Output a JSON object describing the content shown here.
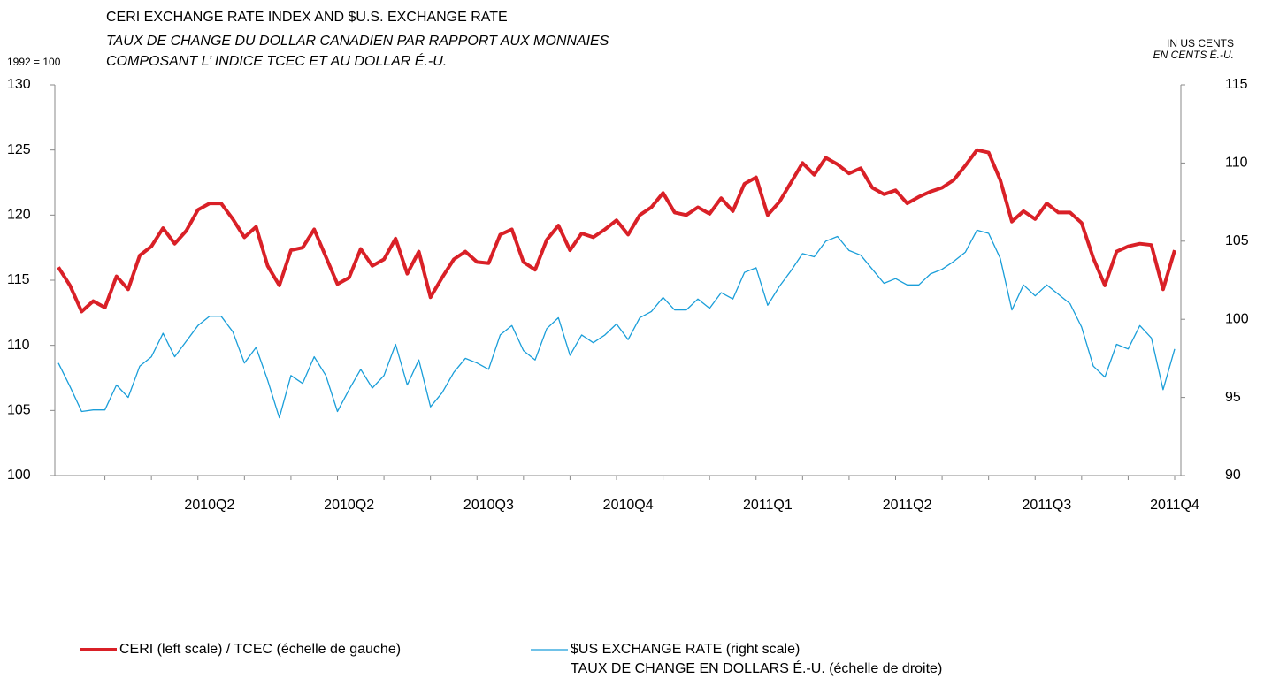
{
  "chart_data": {
    "type": "line",
    "title": "CERI EXCHANGE RATE INDEX AND $U.S. EXCHANGE RATE",
    "subtitle_lines": [
      "TAUX DE CHANGE DU DOLLAR CANADIEN PAR RAPPORT AUX MONNAIES",
      "COMPOSANT L’ INDICE TCEC ET AU DOLLAR É.-U."
    ],
    "y_label": "1992 = 100",
    "y2_label_lines": [
      "IN US CENTS",
      "EN CENTS É.-U."
    ],
    "categories": [
      null,
      null,
      null,
      null,
      null,
      null,
      null,
      null,
      null,
      null,
      null,
      null,
      null,
      "2010Q2",
      null,
      null,
      null,
      null,
      null,
      null,
      null,
      null,
      null,
      null,
      null,
      "2010Q2",
      null,
      null,
      null,
      null,
      null,
      null,
      null,
      null,
      null,
      null,
      null,
      "2010Q3",
      null,
      null,
      null,
      null,
      null,
      null,
      null,
      null,
      null,
      null,
      null,
      "2010Q4",
      null,
      null,
      null,
      null,
      null,
      null,
      null,
      null,
      null,
      null,
      null,
      "2011Q1",
      null,
      null,
      null,
      null,
      null,
      null,
      null,
      null,
      null,
      null,
      null,
      "2011Q2",
      null,
      null,
      null,
      null,
      null,
      null,
      null,
      null,
      null,
      null,
      null,
      "2011Q3",
      null,
      null,
      null,
      null,
      null,
      null,
      null,
      null,
      null,
      null,
      "2011Q4"
    ],
    "ylim": [
      100,
      130
    ],
    "yticks": [
      100,
      105,
      110,
      115,
      120,
      125,
      130
    ],
    "y2lim": [
      90,
      115
    ],
    "y2ticks": [
      90,
      95,
      100,
      105,
      110,
      115
    ],
    "series": [
      {
        "name": "CERI (left scale) / TCEC (échelle de gauche)",
        "color": "#d92027",
        "width": 4,
        "values": [
          116.0,
          114.6,
          112.6,
          113.4,
          112.9,
          115.3,
          114.3,
          116.9,
          117.6,
          119.0,
          117.8,
          118.8,
          120.4,
          120.9,
          120.9,
          119.7,
          118.3,
          119.1,
          116.1,
          114.6,
          117.3,
          117.5,
          118.9,
          116.8,
          114.7,
          115.2,
          117.4,
          116.1,
          116.6,
          118.2,
          115.5,
          117.2,
          113.7,
          115.2,
          116.6,
          117.2,
          116.4,
          116.3,
          118.5,
          118.9,
          116.4,
          115.8,
          118.1,
          119.2,
          117.3,
          118.6,
          118.3,
          118.9,
          119.6,
          118.5,
          120.0,
          120.6,
          121.7,
          120.2,
          120.0,
          120.6,
          120.1,
          121.3,
          120.3,
          122.4,
          122.9,
          120.0,
          121.0,
          122.5,
          124.0,
          123.1,
          124.4,
          123.9,
          123.2,
          123.6,
          122.1,
          121.6,
          121.9,
          120.9,
          121.4,
          121.8,
          122.1,
          122.7,
          123.8,
          125.0,
          124.8,
          122.7,
          119.5,
          120.3,
          119.7,
          120.9,
          120.2,
          120.2,
          119.4,
          116.7,
          114.6,
          117.2,
          117.6,
          117.8,
          117.7,
          114.3,
          117.3
        ]
      },
      {
        "name": "$US EXCHANGE RATE (right scale)",
        "name_line2": "TAUX DE CHANGE EN DOLLARS É.-U. (échelle de droite)",
        "color": "#1a9ed9",
        "width": 1.3,
        "axis": "y2",
        "values": [
          97.2,
          95.7,
          94.1,
          94.2,
          94.2,
          95.8,
          95.0,
          97.0,
          97.6,
          99.1,
          97.6,
          98.6,
          99.6,
          100.2,
          100.2,
          99.2,
          97.2,
          98.2,
          96.1,
          93.7,
          96.4,
          95.9,
          97.6,
          96.4,
          94.1,
          95.5,
          96.8,
          95.6,
          96.4,
          98.4,
          95.8,
          97.4,
          94.4,
          95.3,
          96.6,
          97.5,
          97.2,
          96.8,
          99.0,
          99.6,
          98.0,
          97.4,
          99.4,
          100.1,
          97.7,
          99.0,
          98.5,
          99.0,
          99.7,
          98.7,
          100.1,
          100.5,
          101.4,
          100.6,
          100.6,
          101.3,
          100.7,
          101.7,
          101.3,
          103.0,
          103.3,
          100.9,
          102.1,
          103.1,
          104.2,
          104.0,
          105.0,
          105.3,
          104.4,
          104.1,
          103.2,
          102.3,
          102.6,
          102.2,
          102.2,
          102.9,
          103.2,
          103.7,
          104.3,
          105.7,
          105.5,
          103.9,
          100.6,
          102.2,
          101.5,
          102.2,
          101.6,
          101.0,
          99.5,
          97.0,
          96.3,
          98.4,
          98.1,
          99.6,
          98.8,
          95.5,
          98.1
        ]
      }
    ]
  }
}
